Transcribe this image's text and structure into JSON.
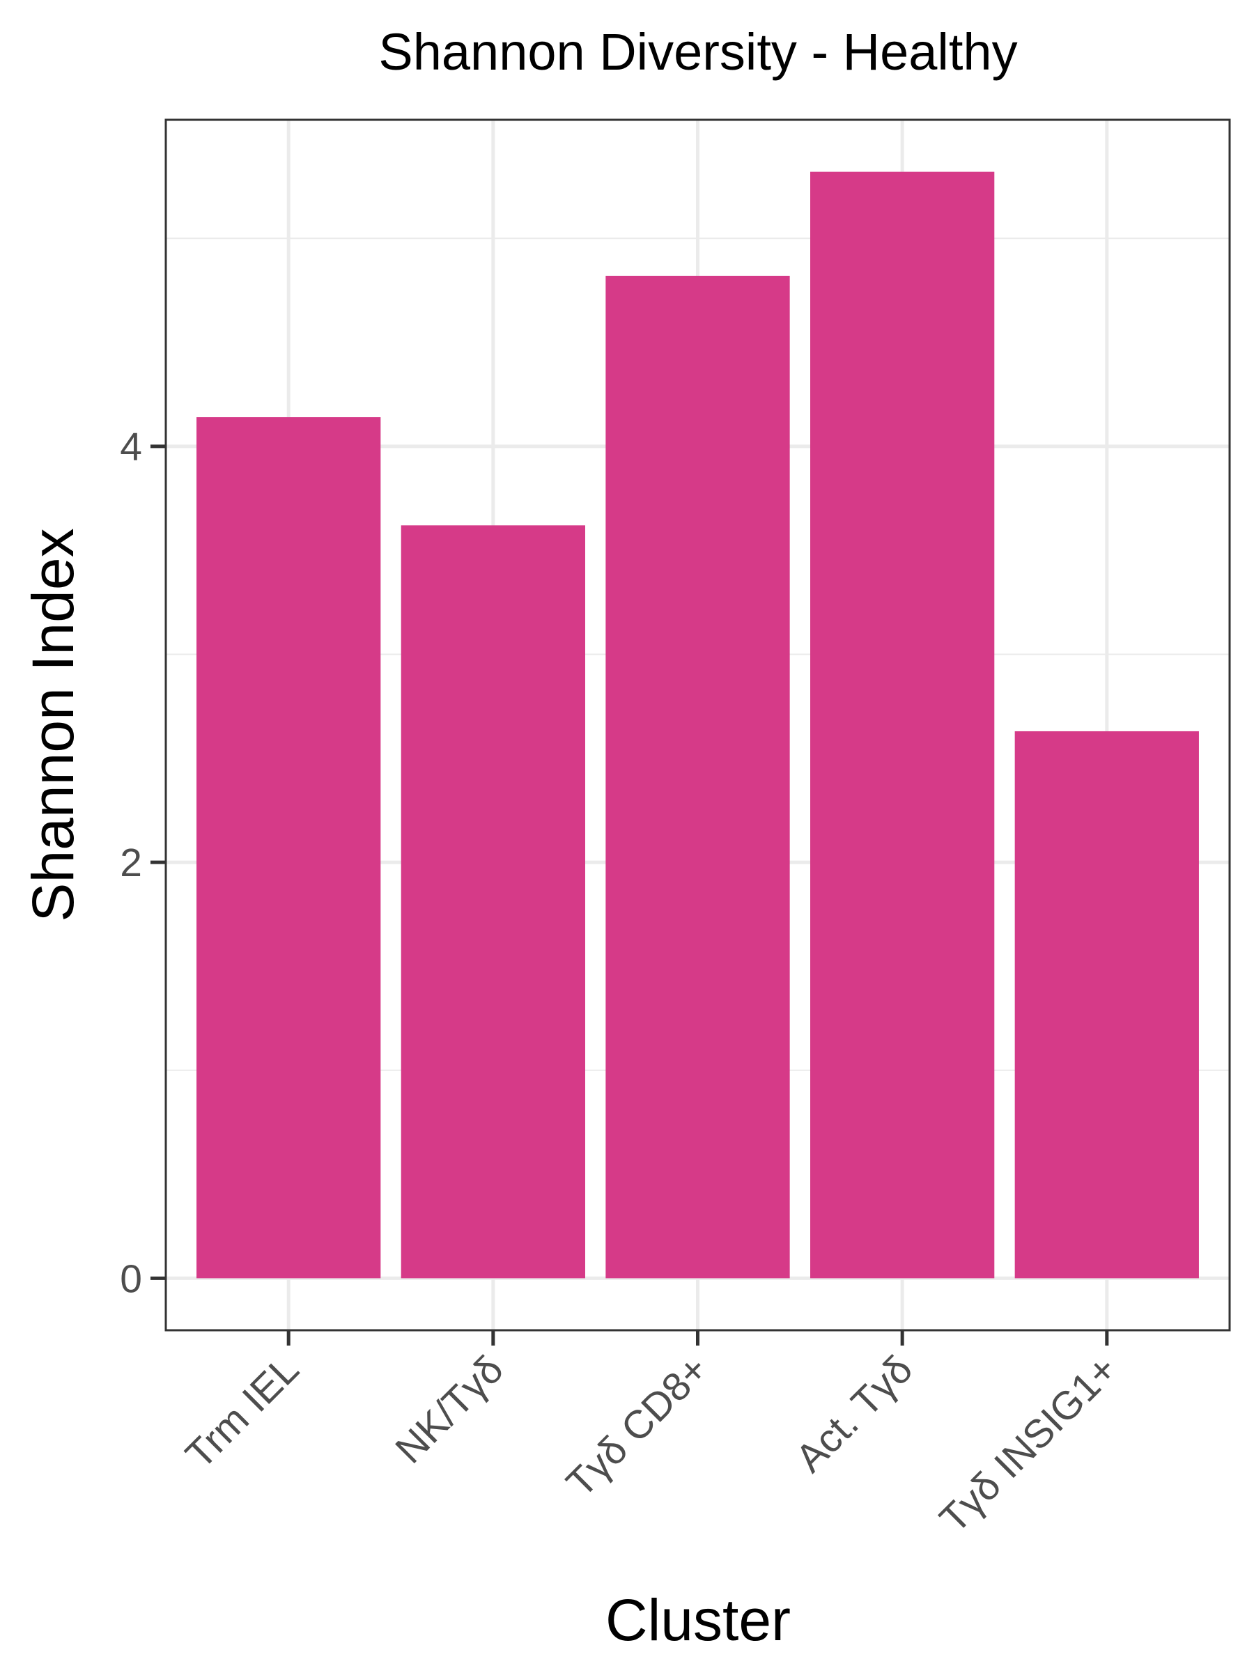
{
  "chart_data": {
    "type": "bar",
    "title": "Shannon Diversity -  Healthy",
    "xlabel": "Cluster",
    "ylabel": "Shannon Index",
    "categories": [
      "Trm IEL",
      "NK/Tγδ",
      "Tγδ CD8+",
      "Act. Tγδ",
      "Tγδ INSIG1+"
    ],
    "values": [
      4.14,
      3.62,
      4.82,
      5.32,
      2.63
    ],
    "ylim": [
      -0.25,
      5.57
    ],
    "yticks": [
      0,
      2,
      4
    ],
    "grid": true,
    "bar_color": "#d63a88",
    "theme": "bw"
  }
}
